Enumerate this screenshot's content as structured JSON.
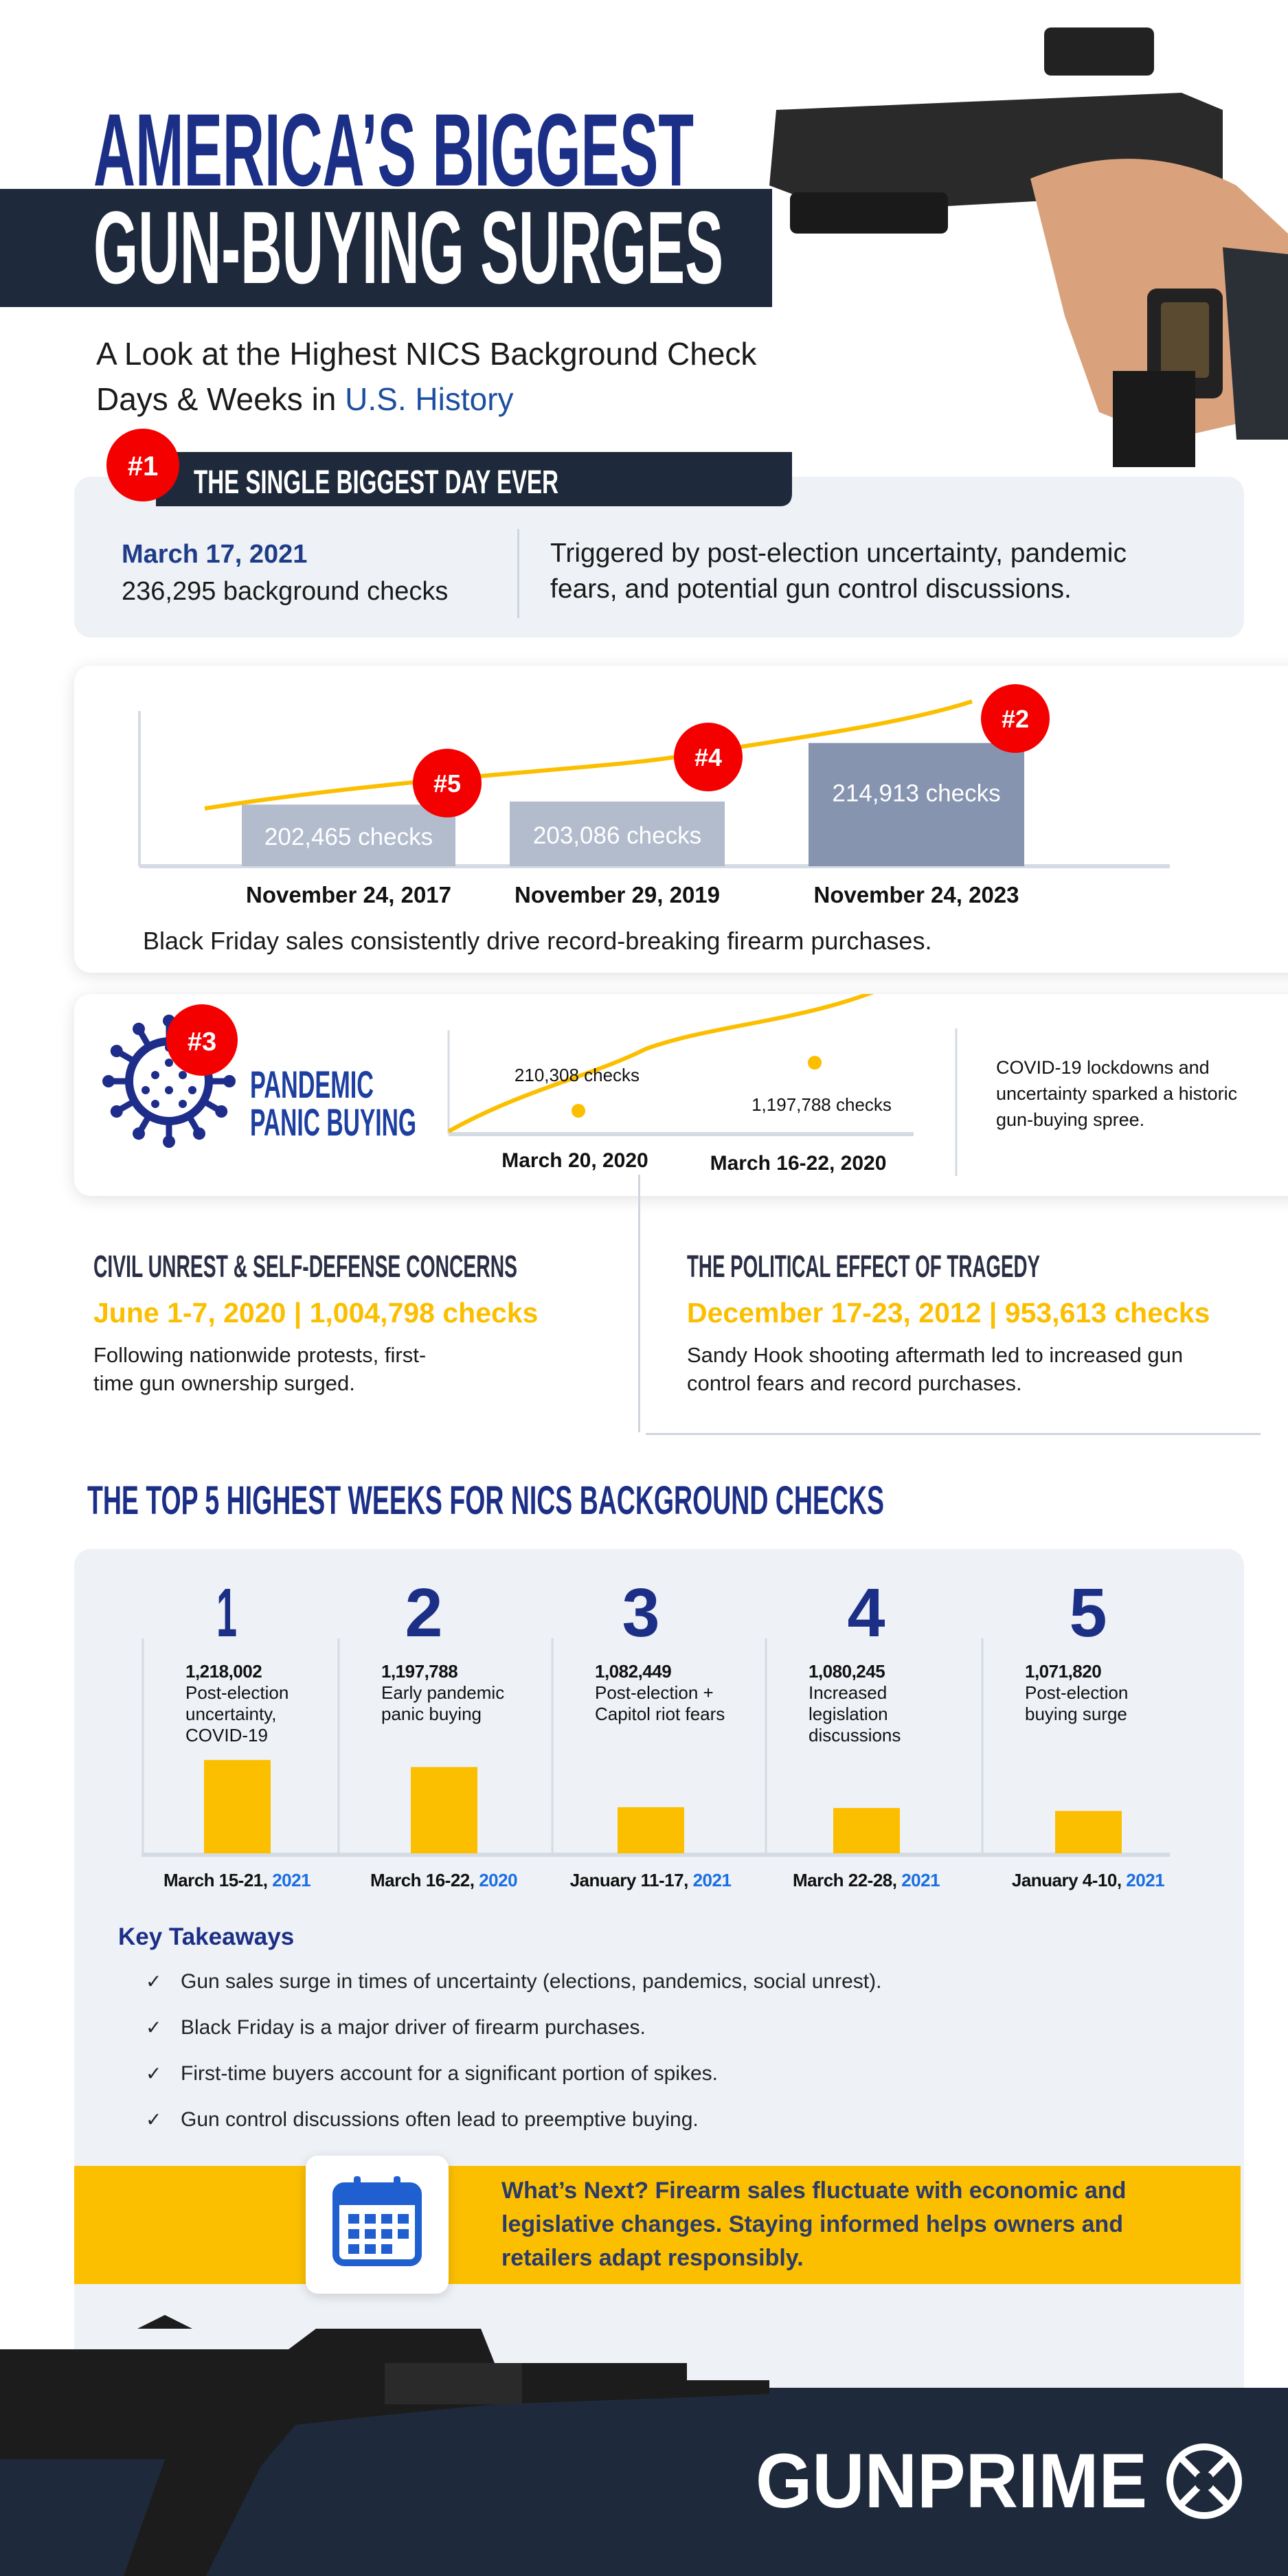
{
  "header": {
    "title_line1": "AMERICA’S BIGGEST",
    "title_line2": "GUN-BUYING SURGES",
    "subtitle_line1": "A Look at the Highest NICS Background Check",
    "subtitle_line2_prefix": "Days & Weeks in ",
    "subtitle_line2_link": "U.S. History"
  },
  "colors": {
    "navy": "#1c2f86",
    "dark": "#1e2a3b",
    "yellow": "#fbbf00",
    "red": "#f40000",
    "light_panel": "#eef1f6",
    "blue_link": "#1a6fe0"
  },
  "biggest_day": {
    "badge": "#1",
    "heading": "THE SINGLE BIGGEST DAY EVER",
    "date": "March 17, 2021",
    "checks": "236,295 background checks",
    "reason_line1": "Triggered by post-election uncertainty, pandemic",
    "reason_line2": "fears, and potential gun control discussions."
  },
  "black_friday": {
    "caption": "Black Friday sales consistently drive record-breaking firearm purchases.",
    "items": [
      {
        "badge": "#5",
        "date": "November 24, 2017",
        "label": "202,465  checks",
        "value": 202465
      },
      {
        "badge": "#4",
        "date": "November 29, 2019",
        "label": "203,086 checks",
        "value": 203086
      },
      {
        "badge": "#2",
        "date": "November 24, 2023",
        "label": "214,913 checks",
        "value": 214913
      }
    ]
  },
  "pandemic": {
    "badge": "#3",
    "title_line1": "PANDEMIC",
    "title_line2": "PANIC BUYING",
    "icon": "virus-icon",
    "points": [
      {
        "label": "210,308 checks",
        "date": "March 20, 2020"
      },
      {
        "label": "1,197,788 checks",
        "date": "March 16-22, 2020"
      }
    ],
    "desc_line1": "COVID-19 lockdowns and",
    "desc_line2": "uncertainty sparked a historic",
    "desc_line3": "gun-buying spree."
  },
  "civil_unrest": {
    "heading": "CIVIL UNREST & SELF-DEFENSE CONCERNS",
    "stat": "June 1-7, 2020 | 1,004,798 checks",
    "desc_line1": "Following nationwide protests, first-",
    "desc_line2": "time gun ownership surged."
  },
  "tragedy": {
    "heading": "THE POLITICAL EFFECT OF TRAGEDY",
    "stat": "December 17-23, 2012 | 953,613 checks",
    "desc_line1": "Sandy Hook shooting aftermath led to increased gun",
    "desc_line2": "control fears and record purchases."
  },
  "chart_data": {
    "type": "bar",
    "title": "THE TOP 5 HIGHEST WEEKS FOR NICS BACKGROUND CHECKS",
    "categories": [
      "March 15-21, 2021",
      "March 16-22, 2020",
      "January 11-17, 2021",
      "March 22-28, 2021",
      "January 4-10, 2021"
    ],
    "values": [
      1218002,
      1197788,
      1082449,
      1080245,
      1071820
    ],
    "items": [
      {
        "rank": "1",
        "value_label": "1,218,002",
        "desc": "Post-election uncertainty, COVID-19",
        "date": "March 15-21, ",
        "year": "2021"
      },
      {
        "rank": "2",
        "value_label": "1,197,788",
        "desc": "Early pandemic panic buying",
        "date": "March 16-22, ",
        "year": "2020"
      },
      {
        "rank": "3",
        "value_label": "1,082,449",
        "desc": "Post-election + Capitol riot fears",
        "date": "January 11-17, ",
        "year": "2021"
      },
      {
        "rank": "4",
        "value_label": "1,080,245",
        "desc": "Increased legislation discussions",
        "date": "March 22-28, ",
        "year": "2021"
      },
      {
        "rank": "5",
        "value_label": "1,071,820",
        "desc": "Post-election buying surge",
        "date": "January 4-10, ",
        "year": "2021"
      }
    ],
    "bar_color": "#fbbf00",
    "grid": false
  },
  "takeaways": {
    "heading": "Key Takeaways",
    "items": [
      "Gun sales surge in times of uncertainty (elections, pandemics, social unrest).",
      "Black Friday is a major driver of firearm purchases.",
      "First-time buyers account for a significant portion of spikes.",
      "Gun control discussions often lead to preemptive buying."
    ]
  },
  "banner": {
    "icon": "calendar-icon",
    "line1": "What’s Next? Firearm sales fluctuate with economic and",
    "line2": "legislative changes. Staying informed helps owners and",
    "line3": "retailers adapt responsibly."
  },
  "footer": {
    "logo": "GUNPRIME"
  }
}
